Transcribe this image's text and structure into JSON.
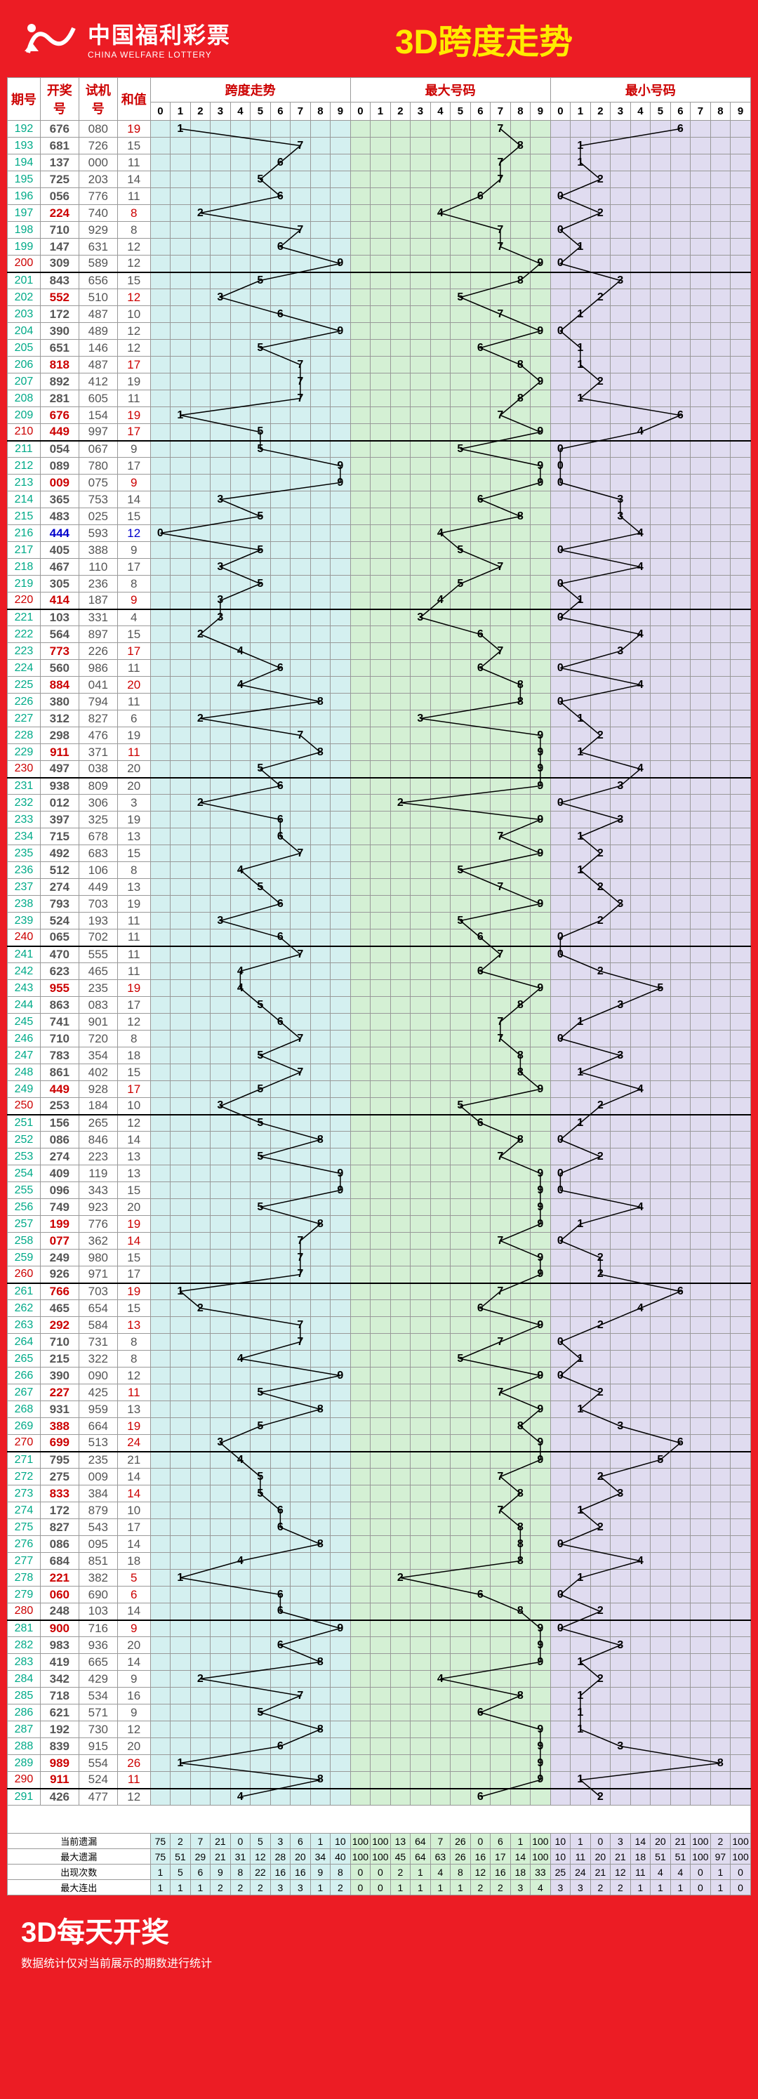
{
  "header": {
    "logo_cn": "中国福利彩票",
    "logo_en": "CHINA WELFARE LOTTERY",
    "title": "3D跨度走势"
  },
  "columns": {
    "issue": "期号",
    "draw": "开奖号",
    "test": "试机号",
    "sum": "和值",
    "chartA": "跨度走势",
    "chartB": "最大号码",
    "chartC": "最小号码"
  },
  "digits": [
    "0",
    "1",
    "2",
    "3",
    "4",
    "5",
    "6",
    "7",
    "8",
    "9"
  ],
  "footer": {
    "title": "3D每天开奖",
    "sub": "数据统计仅对当前展示的期数进行统计"
  },
  "stat_labels": [
    "当前遗漏",
    "最大遗漏",
    "出现次数",
    "最大连出"
  ],
  "stats": {
    "a": [
      [
        75,
        2,
        7,
        21,
        0,
        5,
        3,
        6,
        1,
        10
      ],
      [
        75,
        51,
        29,
        21,
        31,
        12,
        28,
        20,
        34,
        40
      ],
      [
        1,
        5,
        6,
        9,
        8,
        22,
        16,
        16,
        9,
        8
      ],
      [
        1,
        1,
        1,
        2,
        2,
        2,
        3,
        3,
        1,
        2
      ]
    ],
    "b": [
      [
        100,
        100,
        13,
        64,
        7,
        26,
        0,
        6,
        1,
        100
      ],
      [
        100,
        100,
        45,
        64,
        63,
        26,
        16,
        17,
        14,
        100
      ],
      [
        0,
        0,
        2,
        1,
        4,
        8,
        12,
        16,
        18,
        33
      ],
      [
        0,
        0,
        1,
        1,
        1,
        1,
        2,
        2,
        3,
        4
      ]
    ],
    "c": [
      [
        10,
        1,
        0,
        3,
        14,
        20,
        21,
        100,
        2,
        100
      ],
      [
        10,
        11,
        20,
        21,
        18,
        51,
        51,
        100,
        97,
        100
      ],
      [
        25,
        24,
        21,
        12,
        11,
        4,
        4,
        0,
        1,
        0
      ],
      [
        3,
        3,
        2,
        2,
        1,
        1,
        1,
        0,
        1,
        0
      ]
    ]
  },
  "rows": [
    {
      "i": "192",
      "d": "676",
      "t": "080",
      "s": "19",
      "sr": 1,
      "a": 1,
      "b": 7,
      "c": 6
    },
    {
      "i": "193",
      "d": "681",
      "t": "726",
      "s": "15",
      "a": 7,
      "b": 8,
      "c": 1
    },
    {
      "i": "194",
      "d": "137",
      "t": "000",
      "s": "11",
      "a": 6,
      "b": 7,
      "c": 1
    },
    {
      "i": "195",
      "d": "725",
      "t": "203",
      "s": "14",
      "a": 5,
      "b": 7,
      "c": 2
    },
    {
      "i": "196",
      "d": "056",
      "t": "776",
      "s": "11",
      "a": 6,
      "b": 6,
      "c": 0
    },
    {
      "i": "197",
      "d": "224",
      "t": "740",
      "s": "8",
      "sr": 1,
      "dr": 1,
      "a": 2,
      "b": 4,
      "c": 2
    },
    {
      "i": "198",
      "d": "710",
      "t": "929",
      "s": "8",
      "a": 7,
      "b": 7,
      "c": 0
    },
    {
      "i": "199",
      "d": "147",
      "t": "631",
      "s": "12",
      "a": 6,
      "b": 7,
      "c": 1
    },
    {
      "i": "200",
      "d": "309",
      "t": "589",
      "s": "12",
      "r10": 1,
      "a": 9,
      "b": 9,
      "c": 0
    },
    {
      "i": "201",
      "d": "843",
      "t": "656",
      "s": "15",
      "sep": 1,
      "a": 5,
      "b": 8,
      "c": 3
    },
    {
      "i": "202",
      "d": "552",
      "t": "510",
      "s": "12",
      "sr": 1,
      "dr": 1,
      "a": 3,
      "b": 5,
      "c": 2
    },
    {
      "i": "203",
      "d": "172",
      "t": "487",
      "s": "10",
      "a": 6,
      "b": 7,
      "c": 1
    },
    {
      "i": "204",
      "d": "390",
      "t": "489",
      "s": "12",
      "a": 9,
      "b": 9,
      "c": 0
    },
    {
      "i": "205",
      "d": "651",
      "t": "146",
      "s": "12",
      "a": 5,
      "b": 6,
      "c": 1
    },
    {
      "i": "206",
      "d": "818",
      "t": "487",
      "s": "17",
      "sr": 1,
      "dr": 1,
      "a": 7,
      "b": 8,
      "c": 1
    },
    {
      "i": "207",
      "d": "892",
      "t": "412",
      "s": "19",
      "a": 7,
      "b": 9,
      "c": 2
    },
    {
      "i": "208",
      "d": "281",
      "t": "605",
      "s": "11",
      "a": 7,
      "b": 8,
      "c": 1
    },
    {
      "i": "209",
      "d": "676",
      "t": "154",
      "s": "19",
      "sr": 1,
      "dr": 1,
      "a": 1,
      "b": 7,
      "c": 6
    },
    {
      "i": "210",
      "d": "449",
      "t": "997",
      "s": "17",
      "sr": 1,
      "dr": 1,
      "r10": 1,
      "a": 5,
      "b": 9,
      "c": 4
    },
    {
      "i": "211",
      "d": "054",
      "t": "067",
      "s": "9",
      "sep": 1,
      "a": 5,
      "b": 5,
      "c": 0
    },
    {
      "i": "212",
      "d": "089",
      "t": "780",
      "s": "17",
      "a": 9,
      "b": 9,
      "c": 0
    },
    {
      "i": "213",
      "d": "009",
      "t": "075",
      "s": "9",
      "sr": 1,
      "dr": 1,
      "a": 9,
      "b": 9,
      "c": 0
    },
    {
      "i": "214",
      "d": "365",
      "t": "753",
      "s": "14",
      "a": 3,
      "b": 6,
      "c": 3
    },
    {
      "i": "215",
      "d": "483",
      "t": "025",
      "s": "15",
      "a": 5,
      "b": 8,
      "c": 3
    },
    {
      "i": "216",
      "d": "444",
      "t": "593",
      "s": "12",
      "sb": 1,
      "db": 1,
      "a": 0,
      "b": 4,
      "c": 4
    },
    {
      "i": "217",
      "d": "405",
      "t": "388",
      "s": "9",
      "a": 5,
      "b": 5,
      "c": 0
    },
    {
      "i": "218",
      "d": "467",
      "t": "110",
      "s": "17",
      "a": 3,
      "b": 7,
      "c": 4
    },
    {
      "i": "219",
      "d": "305",
      "t": "236",
      "s": "8",
      "a": 5,
      "b": 5,
      "c": 0
    },
    {
      "i": "220",
      "d": "414",
      "t": "187",
      "s": "9",
      "sr": 1,
      "dr": 1,
      "r10": 1,
      "a": 3,
      "b": 4,
      "c": 1
    },
    {
      "i": "221",
      "d": "103",
      "t": "331",
      "s": "4",
      "sep": 1,
      "a": 3,
      "b": 3,
      "c": 0
    },
    {
      "i": "222",
      "d": "564",
      "t": "897",
      "s": "15",
      "a": 2,
      "b": 6,
      "c": 4
    },
    {
      "i": "223",
      "d": "773",
      "t": "226",
      "s": "17",
      "sr": 1,
      "dr": 1,
      "a": 4,
      "b": 7,
      "c": 3
    },
    {
      "i": "224",
      "d": "560",
      "t": "986",
      "s": "11",
      "a": 6,
      "b": 6,
      "c": 0
    },
    {
      "i": "225",
      "d": "884",
      "t": "041",
      "s": "20",
      "sr": 1,
      "dr": 1,
      "a": 4,
      "b": 8,
      "c": 4
    },
    {
      "i": "226",
      "d": "380",
      "t": "794",
      "s": "11",
      "a": 8,
      "b": 8,
      "c": 0
    },
    {
      "i": "227",
      "d": "312",
      "t": "827",
      "s": "6",
      "a": 2,
      "b": 3,
      "c": 1
    },
    {
      "i": "228",
      "d": "298",
      "t": "476",
      "s": "19",
      "a": 7,
      "b": 9,
      "c": 2
    },
    {
      "i": "229",
      "d": "911",
      "t": "371",
      "s": "11",
      "sr": 1,
      "dr": 1,
      "a": 8,
      "b": 9,
      "c": 1
    },
    {
      "i": "230",
      "d": "497",
      "t": "038",
      "s": "20",
      "r10": 1,
      "a": 5,
      "b": 9,
      "c": 4
    },
    {
      "i": "231",
      "d": "938",
      "t": "809",
      "s": "20",
      "sep": 1,
      "a": 6,
      "b": 9,
      "c": 3
    },
    {
      "i": "232",
      "d": "012",
      "t": "306",
      "s": "3",
      "a": 2,
      "b": 2,
      "c": 0
    },
    {
      "i": "233",
      "d": "397",
      "t": "325",
      "s": "19",
      "a": 6,
      "b": 9,
      "c": 3
    },
    {
      "i": "234",
      "d": "715",
      "t": "678",
      "s": "13",
      "a": 6,
      "b": 7,
      "c": 1
    },
    {
      "i": "235",
      "d": "492",
      "t": "683",
      "s": "15",
      "a": 7,
      "b": 9,
      "c": 2
    },
    {
      "i": "236",
      "d": "512",
      "t": "106",
      "s": "8",
      "a": 4,
      "b": 5,
      "c": 1
    },
    {
      "i": "237",
      "d": "274",
      "t": "449",
      "s": "13",
      "a": 5,
      "b": 7,
      "c": 2
    },
    {
      "i": "238",
      "d": "793",
      "t": "703",
      "s": "19",
      "a": 6,
      "b": 9,
      "c": 3
    },
    {
      "i": "239",
      "d": "524",
      "t": "193",
      "s": "11",
      "a": 3,
      "b": 5,
      "c": 2
    },
    {
      "i": "240",
      "d": "065",
      "t": "702",
      "s": "11",
      "r10": 1,
      "a": 6,
      "b": 6,
      "c": 0
    },
    {
      "i": "241",
      "d": "470",
      "t": "555",
      "s": "11",
      "sep": 1,
      "a": 7,
      "b": 7,
      "c": 0
    },
    {
      "i": "242",
      "d": "623",
      "t": "465",
      "s": "11",
      "a": 4,
      "b": 6,
      "c": 2
    },
    {
      "i": "243",
      "d": "955",
      "t": "235",
      "s": "19",
      "sr": 1,
      "dr": 1,
      "a": 4,
      "b": 9,
      "c": 5
    },
    {
      "i": "244",
      "d": "863",
      "t": "083",
      "s": "17",
      "a": 5,
      "b": 8,
      "c": 3
    },
    {
      "i": "245",
      "d": "741",
      "t": "901",
      "s": "12",
      "a": 6,
      "b": 7,
      "c": 1
    },
    {
      "i": "246",
      "d": "710",
      "t": "720",
      "s": "8",
      "a": 7,
      "b": 7,
      "c": 0
    },
    {
      "i": "247",
      "d": "783",
      "t": "354",
      "s": "18",
      "a": 5,
      "b": 8,
      "c": 3
    },
    {
      "i": "248",
      "d": "861",
      "t": "402",
      "s": "15",
      "a": 7,
      "b": 8,
      "c": 1
    },
    {
      "i": "249",
      "d": "449",
      "t": "928",
      "s": "17",
      "sr": 1,
      "dr": 1,
      "a": 5,
      "b": 9,
      "c": 4
    },
    {
      "i": "250",
      "d": "253",
      "t": "184",
      "s": "10",
      "r10": 1,
      "a": 3,
      "b": 5,
      "c": 2
    },
    {
      "i": "251",
      "d": "156",
      "t": "265",
      "s": "12",
      "sep": 1,
      "a": 5,
      "b": 6,
      "c": 1
    },
    {
      "i": "252",
      "d": "086",
      "t": "846",
      "s": "14",
      "a": 8,
      "b": 8,
      "c": 0
    },
    {
      "i": "253",
      "d": "274",
      "t": "223",
      "s": "13",
      "a": 5,
      "b": 7,
      "c": 2
    },
    {
      "i": "254",
      "d": "409",
      "t": "119",
      "s": "13",
      "a": 9,
      "b": 9,
      "c": 0
    },
    {
      "i": "255",
      "d": "096",
      "t": "343",
      "s": "15",
      "a": 9,
      "b": 9,
      "c": 0
    },
    {
      "i": "256",
      "d": "749",
      "t": "923",
      "s": "20",
      "a": 5,
      "b": 9,
      "c": 4
    },
    {
      "i": "257",
      "d": "199",
      "t": "776",
      "s": "19",
      "sr": 1,
      "dr": 1,
      "a": 8,
      "b": 9,
      "c": 1
    },
    {
      "i": "258",
      "d": "077",
      "t": "362",
      "s": "14",
      "sr": 1,
      "dr": 1,
      "a": 7,
      "b": 7,
      "c": 0
    },
    {
      "i": "259",
      "d": "249",
      "t": "980",
      "s": "15",
      "a": 7,
      "b": 9,
      "c": 2
    },
    {
      "i": "260",
      "d": "926",
      "t": "971",
      "s": "17",
      "r10": 1,
      "a": 7,
      "b": 9,
      "c": 2
    },
    {
      "i": "261",
      "d": "766",
      "t": "703",
      "s": "19",
      "sr": 1,
      "dr": 1,
      "sep": 1,
      "a": 1,
      "b": 7,
      "c": 6
    },
    {
      "i": "262",
      "d": "465",
      "t": "654",
      "s": "15",
      "a": 2,
      "b": 6,
      "c": 4
    },
    {
      "i": "263",
      "d": "292",
      "t": "584",
      "s": "13",
      "sr": 1,
      "dr": 1,
      "a": 7,
      "b": 9,
      "c": 2
    },
    {
      "i": "264",
      "d": "710",
      "t": "731",
      "s": "8",
      "a": 7,
      "b": 7,
      "c": 0
    },
    {
      "i": "265",
      "d": "215",
      "t": "322",
      "s": "8",
      "a": 4,
      "b": 5,
      "c": 1
    },
    {
      "i": "266",
      "d": "390",
      "t": "090",
      "s": "12",
      "a": 9,
      "b": 9,
      "c": 0
    },
    {
      "i": "267",
      "d": "227",
      "t": "425",
      "s": "11",
      "sr": 1,
      "dr": 1,
      "a": 5,
      "b": 7,
      "c": 2
    },
    {
      "i": "268",
      "d": "931",
      "t": "959",
      "s": "13",
      "a": 8,
      "b": 9,
      "c": 1
    },
    {
      "i": "269",
      "d": "388",
      "t": "664",
      "s": "19",
      "sr": 1,
      "dr": 1,
      "a": 5,
      "b": 8,
      "c": 3
    },
    {
      "i": "270",
      "d": "699",
      "t": "513",
      "s": "24",
      "sr": 1,
      "dr": 1,
      "r10": 1,
      "a": 3,
      "b": 9,
      "c": 6
    },
    {
      "i": "271",
      "d": "795",
      "t": "235",
      "s": "21",
      "sep": 1,
      "a": 4,
      "b": 9,
      "c": 5
    },
    {
      "i": "272",
      "d": "275",
      "t": "009",
      "s": "14",
      "a": 5,
      "b": 7,
      "c": 2
    },
    {
      "i": "273",
      "d": "833",
      "t": "384",
      "s": "14",
      "sr": 1,
      "dr": 1,
      "a": 5,
      "b": 8,
      "c": 3
    },
    {
      "i": "274",
      "d": "172",
      "t": "879",
      "s": "10",
      "a": 6,
      "b": 7,
      "c": 1
    },
    {
      "i": "275",
      "d": "827",
      "t": "543",
      "s": "17",
      "a": 6,
      "b": 8,
      "c": 2
    },
    {
      "i": "276",
      "d": "086",
      "t": "095",
      "s": "14",
      "a": 8,
      "b": 8,
      "c": 0
    },
    {
      "i": "277",
      "d": "684",
      "t": "851",
      "s": "18",
      "a": 4,
      "b": 8,
      "c": 4
    },
    {
      "i": "278",
      "d": "221",
      "t": "382",
      "s": "5",
      "sr": 1,
      "dr": 1,
      "a": 1,
      "b": 2,
      "c": 1
    },
    {
      "i": "279",
      "d": "060",
      "t": "690",
      "s": "6",
      "sr": 1,
      "dr": 1,
      "a": 6,
      "b": 6,
      "c": 0
    },
    {
      "i": "280",
      "d": "248",
      "t": "103",
      "s": "14",
      "r10": 1,
      "a": 6,
      "b": 8,
      "c": 2
    },
    {
      "i": "281",
      "d": "900",
      "t": "716",
      "s": "9",
      "sr": 1,
      "dr": 1,
      "sep": 1,
      "a": 9,
      "b": 9,
      "c": 0
    },
    {
      "i": "282",
      "d": "983",
      "t": "936",
      "s": "20",
      "a": 6,
      "b": 9,
      "c": 3
    },
    {
      "i": "283",
      "d": "419",
      "t": "665",
      "s": "14",
      "a": 8,
      "b": 9,
      "c": 1
    },
    {
      "i": "284",
      "d": "342",
      "t": "429",
      "s": "9",
      "a": 2,
      "b": 4,
      "c": 2
    },
    {
      "i": "285",
      "d": "718",
      "t": "534",
      "s": "16",
      "a": 7,
      "b": 8,
      "c": 1
    },
    {
      "i": "286",
      "d": "621",
      "t": "571",
      "s": "9",
      "a": 5,
      "b": 6,
      "c": 1
    },
    {
      "i": "287",
      "d": "192",
      "t": "730",
      "s": "12",
      "a": 8,
      "b": 9,
      "c": 1
    },
    {
      "i": "288",
      "d": "839",
      "t": "915",
      "s": "20",
      "a": 6,
      "b": 9,
      "c": 3
    },
    {
      "i": "289",
      "d": "989",
      "t": "554",
      "s": "26",
      "sr": 1,
      "dr": 1,
      "a": 1,
      "b": 9,
      "c": 8
    },
    {
      "i": "290",
      "d": "911",
      "t": "524",
      "s": "11",
      "sr": 1,
      "dr": 1,
      "r10": 1,
      "a": 8,
      "b": 9,
      "c": 1
    },
    {
      "i": "291",
      "d": "426",
      "t": "477",
      "s": "12",
      "sep": 1,
      "a": 4,
      "b": 6,
      "c": 2
    }
  ]
}
